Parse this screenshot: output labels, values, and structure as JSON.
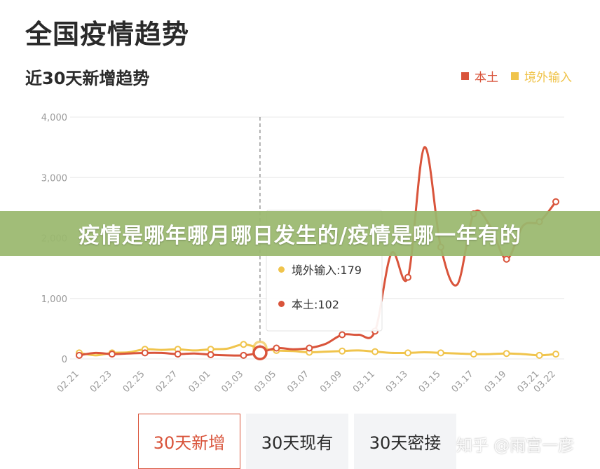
{
  "page": {
    "title": "全国疫情趋势",
    "banner_text": "疫情是哪年哪月哪日发生的/疫情是哪一年有的",
    "watermark": "知乎 @雨宫一彦"
  },
  "colors": {
    "local": "#d9543b",
    "imported": "#f0c44c",
    "grid": "#e8e8e8",
    "axis_text": "#9a9a9a"
  },
  "tabs": [
    {
      "label": "30天新增",
      "active": true
    },
    {
      "label": "30天现有",
      "active": false
    },
    {
      "label": "30天密接",
      "active": false
    }
  ],
  "tooltip": {
    "imported_label": "境外输入:179",
    "local_label": "本土:102"
  },
  "chart_data": {
    "type": "line",
    "title": "近30天新增趋势",
    "xlabel": "",
    "ylabel": "",
    "ylim": [
      0,
      4000
    ],
    "yticks": [
      0,
      1000,
      2000,
      3000,
      4000
    ],
    "y_tick_labels": [
      "0",
      "1,000",
      "2,000",
      "3,000",
      "4,000"
    ],
    "x": [
      "02.21",
      "02.22",
      "02.23",
      "02.24",
      "02.25",
      "02.26",
      "02.27",
      "02.28",
      "03.01",
      "03.02",
      "03.03",
      "03.04",
      "03.05",
      "03.06",
      "03.07",
      "03.08",
      "03.09",
      "03.10",
      "03.11",
      "03.12",
      "03.13",
      "03.14",
      "03.15",
      "03.16",
      "03.17",
      "03.18",
      "03.19",
      "03.20",
      "03.21",
      "03.22"
    ],
    "x_tick_labels": [
      "02.21",
      "02.23",
      "02.25",
      "02.27",
      "03.01",
      "03.03",
      "03.05",
      "03.07",
      "03.09",
      "03.11",
      "03.13",
      "03.15",
      "03.17",
      "03.19",
      "03.21",
      "03.22"
    ],
    "legend_position": "top-right",
    "grid": true,
    "highlighted_x": "03.04",
    "series": [
      {
        "name": "本土",
        "color": "#d9543b",
        "values": [
          60,
          100,
          80,
          90,
          100,
          100,
          80,
          90,
          70,
          60,
          60,
          102,
          180,
          160,
          180,
          250,
          400,
          400,
          460,
          1750,
          1350,
          3500,
          1850,
          1230,
          2400,
          2200,
          1650,
          2200,
          2270,
          2600
        ]
      },
      {
        "name": "境外输入",
        "color": "#f0c44c",
        "values": [
          100,
          60,
          100,
          110,
          160,
          150,
          160,
          140,
          160,
          170,
          240,
          179,
          140,
          130,
          110,
          120,
          130,
          140,
          120,
          100,
          100,
          110,
          100,
          90,
          80,
          80,
          90,
          80,
          60,
          80
        ]
      }
    ]
  }
}
